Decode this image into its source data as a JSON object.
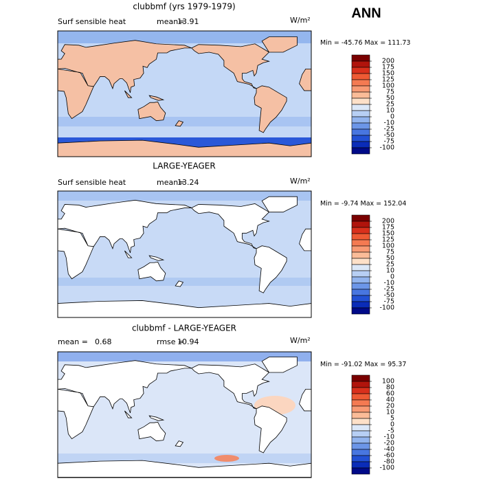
{
  "title": "ANN",
  "colorbar_colors": [
    "#7a0000",
    "#b0140c",
    "#d9301c",
    "#ee5a34",
    "#f47a52",
    "#f89a74",
    "#fbbc98",
    "#fde0c8",
    "#dce8f8",
    "#b7cff4",
    "#92b4ee",
    "#6c96e8",
    "#4876e0",
    "#2250d4",
    "#0a2cb8",
    "#000a88"
  ],
  "panels": [
    {
      "title": "clubbmf (yrs 1979-1979)",
      "field": "Surf sensible heat",
      "stat1_label": "mean=",
      "stat1": 13.91,
      "units": "W/m²",
      "min_label": "Min =",
      "min": -45.76,
      "max_label": "Max =",
      "max": 111.73,
      "levels": [
        200,
        175,
        150,
        125,
        100,
        75,
        50,
        25,
        10,
        0,
        -10,
        -25,
        -50,
        -75,
        -100
      ]
    },
    {
      "title": "LARGE-YEAGER",
      "field": "Surf sensible heat",
      "stat1_label": "mean=",
      "stat1": 13.24,
      "units": "W/m²",
      "min_label": "Min =",
      "min": -9.74,
      "max_label": "Max =",
      "max": 152.04,
      "levels": [
        200,
        175,
        150,
        125,
        100,
        75,
        50,
        25,
        10,
        0,
        -10,
        -25,
        -50,
        -75,
        -100
      ]
    },
    {
      "title": "clubbmf - LARGE-YEAGER",
      "stat1_label": "mean =",
      "stat1": 0.68,
      "stat2_label": "rmse =",
      "stat2": 10.94,
      "units": "W/m²",
      "min_label": "Min =",
      "min": -91.02,
      "max_label": "Max =",
      "max": 95.37,
      "levels": [
        100,
        80,
        60,
        40,
        20,
        10,
        5,
        0,
        -5,
        -10,
        -20,
        -40,
        -60,
        -80,
        -100
      ]
    }
  ]
}
